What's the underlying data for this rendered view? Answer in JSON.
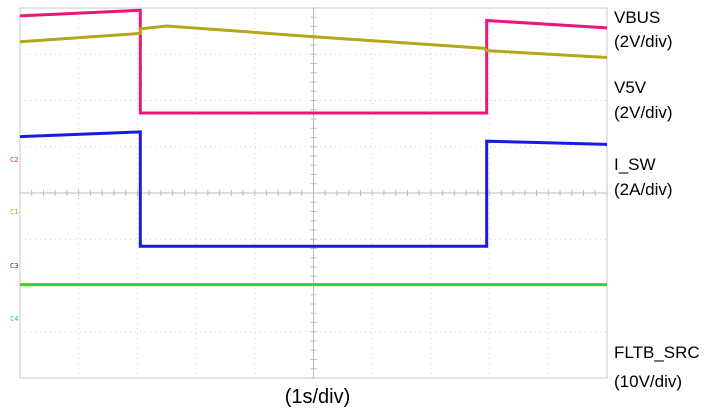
{
  "chart_data": {
    "type": "line",
    "title": "",
    "xlabel": "(1s/div)",
    "ylabel": "",
    "grid": true,
    "grid_divisions": {
      "x": 10,
      "y": 8
    },
    "xlim": [
      0,
      10
    ],
    "ylim": [
      0,
      8
    ],
    "x_unit_label": "(1s/div)",
    "channel_markers": [
      {
        "text": "C2",
        "color": "#e8177a"
      },
      {
        "text": "C1",
        "color": "#b5a61e"
      },
      {
        "text": "C3",
        "color": "#1a1ae0"
      },
      {
        "text": "C4",
        "color": "#22dd22"
      }
    ],
    "series": [
      {
        "name": "VBUS",
        "scale": "(2V/div)",
        "color": "#e8177a",
        "x": [
          0,
          2.05,
          2.05,
          7.95,
          7.95,
          10
        ],
        "y": [
          7.83,
          7.95,
          5.73,
          5.73,
          7.73,
          7.57
        ]
      },
      {
        "name": "V5V",
        "scale": "(2V/div)",
        "color": "#b5a61e",
        "x": [
          0,
          2.05,
          2.05,
          2.5,
          5,
          7.9,
          7.95,
          10
        ],
        "y": [
          7.27,
          7.45,
          7.55,
          7.61,
          7.38,
          7.13,
          7.08,
          6.93
        ]
      },
      {
        "name": "I_SW",
        "scale": "(2A/div)",
        "color": "#1a1ae0",
        "x": [
          0,
          2.05,
          2.05,
          7.95,
          7.95,
          10
        ],
        "y": [
          5.22,
          5.32,
          2.85,
          2.85,
          5.12,
          5.05
        ]
      },
      {
        "name": "FLTB_SRC",
        "scale": "(10V/div)",
        "color": "#22dd22",
        "x": [
          0,
          10
        ],
        "y": [
          2.02,
          2.02
        ]
      }
    ]
  }
}
